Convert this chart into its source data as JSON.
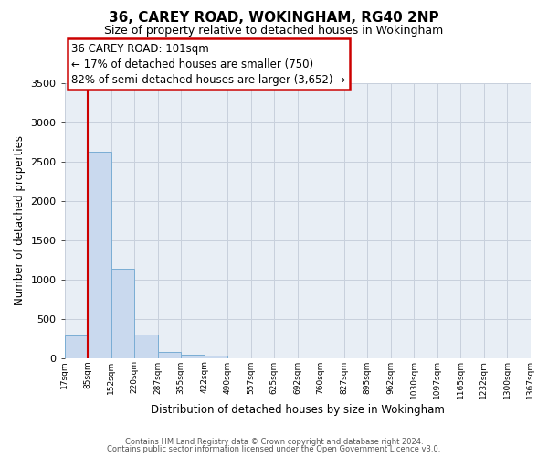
{
  "title": "36, CAREY ROAD, WOKINGHAM, RG40 2NP",
  "subtitle": "Size of property relative to detached houses in Wokingham",
  "xlabel": "Distribution of detached houses by size in Wokingham",
  "ylabel": "Number of detached properties",
  "bar_values": [
    290,
    2630,
    1135,
    295,
    80,
    40,
    25,
    0,
    0,
    0,
    0,
    0,
    0,
    0,
    0,
    0,
    0,
    0,
    0,
    0
  ],
  "bar_labels": [
    "17sqm",
    "85sqm",
    "152sqm",
    "220sqm",
    "287sqm",
    "355sqm",
    "422sqm",
    "490sqm",
    "557sqm",
    "625sqm",
    "692sqm",
    "760sqm",
    "827sqm",
    "895sqm",
    "962sqm",
    "1030sqm",
    "1097sqm",
    "1165sqm",
    "1232sqm",
    "1300sqm",
    "1367sqm"
  ],
  "bar_color": "#c9d9ee",
  "bar_edge_color": "#7aadd4",
  "grid_color": "#c8d0dc",
  "background_color": "#e8eef5",
  "annotation_title": "36 CAREY ROAD: 101sqm",
  "annotation_line1": "← 17% of detached houses are smaller (750)",
  "annotation_line2": "82% of semi-detached houses are larger (3,652) →",
  "annotation_box_color": "#ffffff",
  "annotation_border_color": "#cc0000",
  "red_line_color": "#cc0000",
  "ylim": [
    0,
    3500
  ],
  "yticks": [
    0,
    500,
    1000,
    1500,
    2000,
    2500,
    3000,
    3500
  ],
  "footnote1": "Contains HM Land Registry data © Crown copyright and database right 2024.",
  "footnote2": "Contains public sector information licensed under the Open Government Licence v3.0."
}
